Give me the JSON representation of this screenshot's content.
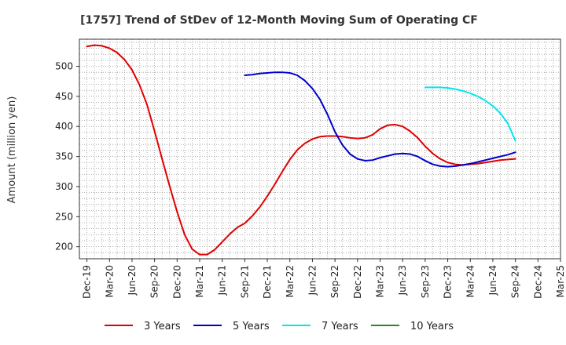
{
  "chart_data": {
    "type": "line",
    "title": "[1757]  Trend of StDev of 12-Month Moving Sum of Operating CF",
    "ylabel": "Amount (million yen)",
    "xlabel": "",
    "x_tick_labels": [
      "Dec-19",
      "Mar-20",
      "Jun-20",
      "Sep-20",
      "Dec-20",
      "Mar-21",
      "Jun-21",
      "Sep-21",
      "Dec-21",
      "Mar-22",
      "Jun-22",
      "Sep-22",
      "Dec-22",
      "Mar-23",
      "Jun-23",
      "Sep-23",
      "Dec-23",
      "Mar-24",
      "Jun-24",
      "Sep-24",
      "Dec-24",
      "Mar-25"
    ],
    "y_ticks": [
      200,
      250,
      300,
      350,
      400,
      450,
      500
    ],
    "ylim": [
      180,
      545
    ],
    "grid": true,
    "legend_position": "bottom",
    "series": [
      {
        "name": "3 Years",
        "color": "#e00000",
        "points": [
          [
            "Dec-19",
            533
          ],
          [
            "Jan-20",
            535
          ],
          [
            "Feb-20",
            534
          ],
          [
            "Mar-20",
            530
          ],
          [
            "Apr-20",
            523
          ],
          [
            "May-20",
            511
          ],
          [
            "Jun-20",
            494
          ],
          [
            "Jul-20",
            469
          ],
          [
            "Aug-20",
            436
          ],
          [
            "Sep-20",
            392
          ],
          [
            "Oct-20",
            346
          ],
          [
            "Nov-20",
            301
          ],
          [
            "Dec-20",
            258
          ],
          [
            "Jan-21",
            220
          ],
          [
            "Feb-21",
            196
          ],
          [
            "Mar-21",
            187
          ],
          [
            "Apr-21",
            187
          ],
          [
            "May-21",
            195
          ],
          [
            "Jun-21",
            208
          ],
          [
            "Jul-21",
            221
          ],
          [
            "Aug-21",
            232
          ],
          [
            "Sep-21",
            239
          ],
          [
            "Oct-21",
            251
          ],
          [
            "Nov-21",
            266
          ],
          [
            "Dec-21",
            284
          ],
          [
            "Jan-22",
            304
          ],
          [
            "Feb-22",
            325
          ],
          [
            "Mar-22",
            345
          ],
          [
            "Apr-22",
            361
          ],
          [
            "May-22",
            372
          ],
          [
            "Jun-22",
            379
          ],
          [
            "Jul-22",
            383
          ],
          [
            "Aug-22",
            384
          ],
          [
            "Sep-22",
            384
          ],
          [
            "Oct-22",
            383
          ],
          [
            "Nov-22",
            381
          ],
          [
            "Dec-22",
            380
          ],
          [
            "Jan-23",
            381
          ],
          [
            "Feb-23",
            386
          ],
          [
            "Mar-23",
            396
          ],
          [
            "Apr-23",
            402
          ],
          [
            "May-23",
            403
          ],
          [
            "Jun-23",
            400
          ],
          [
            "Jul-23",
            392
          ],
          [
            "Aug-23",
            381
          ],
          [
            "Sep-23",
            367
          ],
          [
            "Oct-23",
            355
          ],
          [
            "Nov-23",
            346
          ],
          [
            "Dec-23",
            340
          ],
          [
            "Jan-24",
            337
          ],
          [
            "Feb-24",
            336
          ],
          [
            "Mar-24",
            337
          ],
          [
            "Apr-24",
            338
          ],
          [
            "May-24",
            340
          ],
          [
            "Jun-24",
            342
          ],
          [
            "Jul-24",
            344
          ],
          [
            "Aug-24",
            345
          ],
          [
            "Sep-24",
            346
          ]
        ]
      },
      {
        "name": "5 Years",
        "color": "#0000cc",
        "points": [
          [
            "Sep-21",
            485
          ],
          [
            "Oct-21",
            486
          ],
          [
            "Nov-21",
            488
          ],
          [
            "Dec-21",
            489
          ],
          [
            "Jan-22",
            490
          ],
          [
            "Feb-22",
            490
          ],
          [
            "Mar-22",
            489
          ],
          [
            "Apr-22",
            485
          ],
          [
            "May-22",
            476
          ],
          [
            "Jun-22",
            463
          ],
          [
            "Jul-22",
            445
          ],
          [
            "Aug-22",
            420
          ],
          [
            "Sep-22",
            391
          ],
          [
            "Oct-22",
            369
          ],
          [
            "Nov-22",
            354
          ],
          [
            "Dec-22",
            346
          ],
          [
            "Jan-23",
            343
          ],
          [
            "Feb-23",
            344
          ],
          [
            "Mar-23",
            348
          ],
          [
            "Apr-23",
            351
          ],
          [
            "May-23",
            354
          ],
          [
            "Jun-23",
            355
          ],
          [
            "Jul-23",
            354
          ],
          [
            "Aug-23",
            350
          ],
          [
            "Sep-23",
            343
          ],
          [
            "Oct-23",
            337
          ],
          [
            "Nov-23",
            334
          ],
          [
            "Dec-23",
            333
          ],
          [
            "Jan-24",
            334
          ],
          [
            "Feb-24",
            336
          ],
          [
            "Mar-24",
            338
          ],
          [
            "Apr-24",
            341
          ],
          [
            "May-24",
            344
          ],
          [
            "Jun-24",
            347
          ],
          [
            "Jul-24",
            350
          ],
          [
            "Aug-24",
            353
          ],
          [
            "Sep-24",
            357
          ]
        ]
      },
      {
        "name": "7 Years",
        "color": "#00e5ee",
        "points": [
          [
            "Sep-23",
            465
          ],
          [
            "Oct-23",
            465
          ],
          [
            "Nov-23",
            465
          ],
          [
            "Dec-23",
            464
          ],
          [
            "Jan-24",
            462
          ],
          [
            "Feb-24",
            459
          ],
          [
            "Mar-24",
            455
          ],
          [
            "Apr-24",
            450
          ],
          [
            "May-24",
            443
          ],
          [
            "Jun-24",
            434
          ],
          [
            "Jul-24",
            422
          ],
          [
            "Aug-24",
            405
          ],
          [
            "Sep-24",
            376
          ]
        ]
      },
      {
        "name": "10 Years",
        "color": "#228b22",
        "points": []
      }
    ]
  }
}
